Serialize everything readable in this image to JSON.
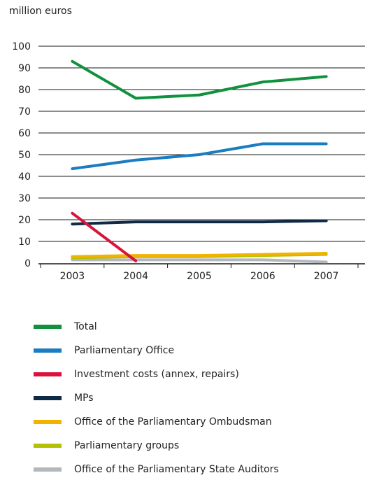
{
  "chart_data": {
    "type": "line",
    "unit_label": "million euros",
    "x": [
      "2003",
      "2004",
      "2005",
      "2006",
      "2007"
    ],
    "yticks": [
      0,
      10,
      20,
      30,
      40,
      50,
      60,
      70,
      80,
      90,
      100
    ],
    "ylim": [
      0,
      100
    ],
    "grid": true,
    "legend_placement": "bottom",
    "series": [
      {
        "name": "Total",
        "color": "#11913e",
        "values": [
          93,
          76,
          77.5,
          83.5,
          86
        ]
      },
      {
        "name": "Parliamentary Office",
        "color": "#1a7cc1",
        "values": [
          43.5,
          47.5,
          50,
          55,
          55
        ]
      },
      {
        "name": "Investment costs (annex, repairs)",
        "color": "#d8143c",
        "values": [
          23,
          1,
          null,
          null,
          null
        ]
      },
      {
        "name": "MPs",
        "color": "#0f2a47",
        "values": [
          18,
          19,
          19,
          19,
          19.5
        ]
      },
      {
        "name": "Office of the Parliamentary Ombudsman",
        "color": "#f2b300",
        "values": [
          3,
          3.5,
          3.5,
          4,
          4.5
        ]
      },
      {
        "name": "Parliamentary groups",
        "color": "#b5c100",
        "values": [
          2.5,
          3,
          3,
          3.5,
          4
        ]
      },
      {
        "name": "Office of the Parliamentary State Auditors",
        "color": "#b3b8bd",
        "values": [
          1.5,
          1.5,
          1.5,
          1.5,
          0.5
        ]
      }
    ]
  }
}
